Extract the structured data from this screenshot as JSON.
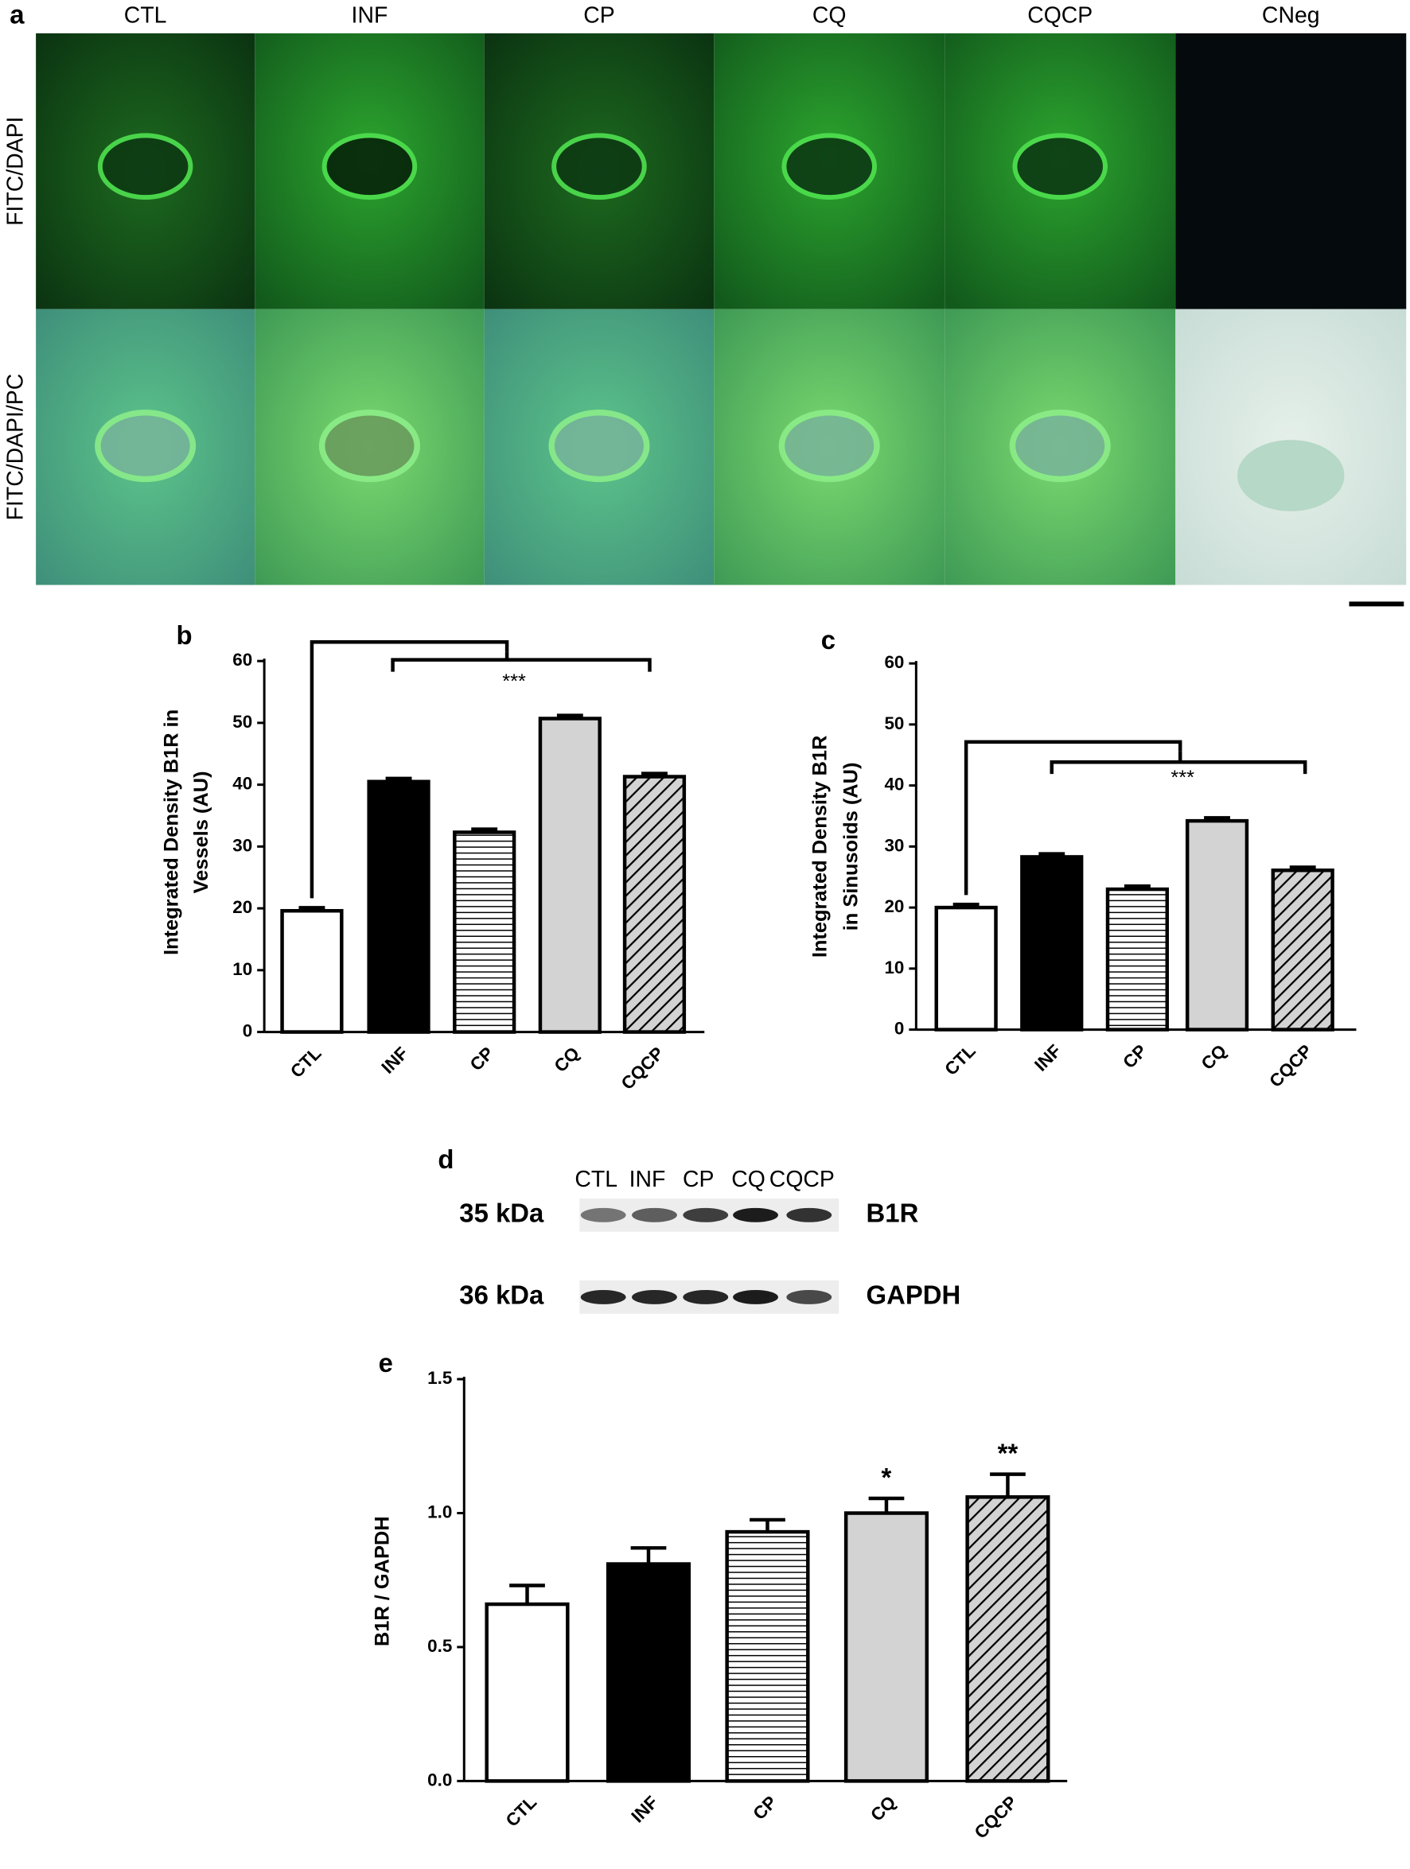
{
  "panel_a": {
    "label": "a",
    "columns": [
      "CTL",
      "INF",
      "CP",
      "CQ",
      "CQCP",
      "CNeg"
    ],
    "rows": [
      "FITC/DAPI",
      "FITC/DAPI/PC"
    ]
  },
  "chart_data": [
    {
      "type": "bar",
      "panel": "b",
      "ylabel": [
        "Integrated Density B1R in",
        "Vessels (AU)"
      ],
      "categories": [
        "CTL",
        "INF",
        "CP",
        "CQ",
        "CQCP"
      ],
      "values": [
        19.6,
        40.5,
        32.3,
        50.7,
        41.3
      ],
      "errors": [
        0.5,
        0.5,
        0.5,
        0.5,
        0.5
      ],
      "colors": [
        "#ffffff",
        "#000000",
        "#ffffff",
        "#d3d3d3",
        "#d3d3d3"
      ],
      "hatch": [
        null,
        null,
        "horizontal",
        null,
        "diagonal"
      ],
      "ylim": [
        0,
        60
      ],
      "yticks": [
        0,
        10,
        20,
        30,
        40,
        50,
        60
      ],
      "annotation": "***"
    },
    {
      "type": "bar",
      "panel": "c",
      "ylabel": [
        "Integrated Density B1R",
        "in Sinusoids (AU)"
      ],
      "categories": [
        "CTL",
        "INF",
        "CP",
        "CQ",
        "CQCP"
      ],
      "values": [
        20,
        28.3,
        23,
        34.2,
        26.1
      ],
      "errors": [
        0.5,
        0.5,
        0.5,
        0.5,
        0.5
      ],
      "colors": [
        "#ffffff",
        "#000000",
        "#ffffff",
        "#d3d3d3",
        "#d3d3d3"
      ],
      "hatch": [
        null,
        null,
        "horizontal",
        null,
        "diagonal"
      ],
      "ylim": [
        0,
        60
      ],
      "yticks": [
        0,
        10,
        20,
        30,
        40,
        50,
        60
      ],
      "annotation": "***"
    },
    {
      "type": "bar",
      "panel": "e",
      "ylabel": [
        "B1R / GAPDH"
      ],
      "categories": [
        "CTL",
        "INF",
        "CP",
        "CQ",
        "CQCP"
      ],
      "values": [
        0.66,
        0.81,
        0.93,
        1.0,
        1.06
      ],
      "errors": [
        0.07,
        0.06,
        0.045,
        0.055,
        0.085
      ],
      "colors": [
        "#ffffff",
        "#000000",
        "#ffffff",
        "#d3d3d3",
        "#d3d3d3"
      ],
      "hatch": [
        null,
        null,
        "horizontal",
        null,
        "diagonal"
      ],
      "ylim": [
        0,
        1.5
      ],
      "yticks": [
        {
          "value": 0,
          "label": "0.0"
        },
        0.5,
        {
          "value": 1,
          "label": "1.0"
        },
        1.5
      ],
      "annotations": [
        null,
        null,
        null,
        "*",
        "**"
      ]
    }
  ],
  "panel_d": {
    "label": "d",
    "lanes": [
      "CTL",
      "INF",
      "CP",
      "CQ",
      "CQCP"
    ],
    "blots": [
      {
        "size": "35 kDa",
        "protein": "B1R"
      },
      {
        "size": "36 kDa",
        "protein": "GAPDH"
      }
    ]
  }
}
